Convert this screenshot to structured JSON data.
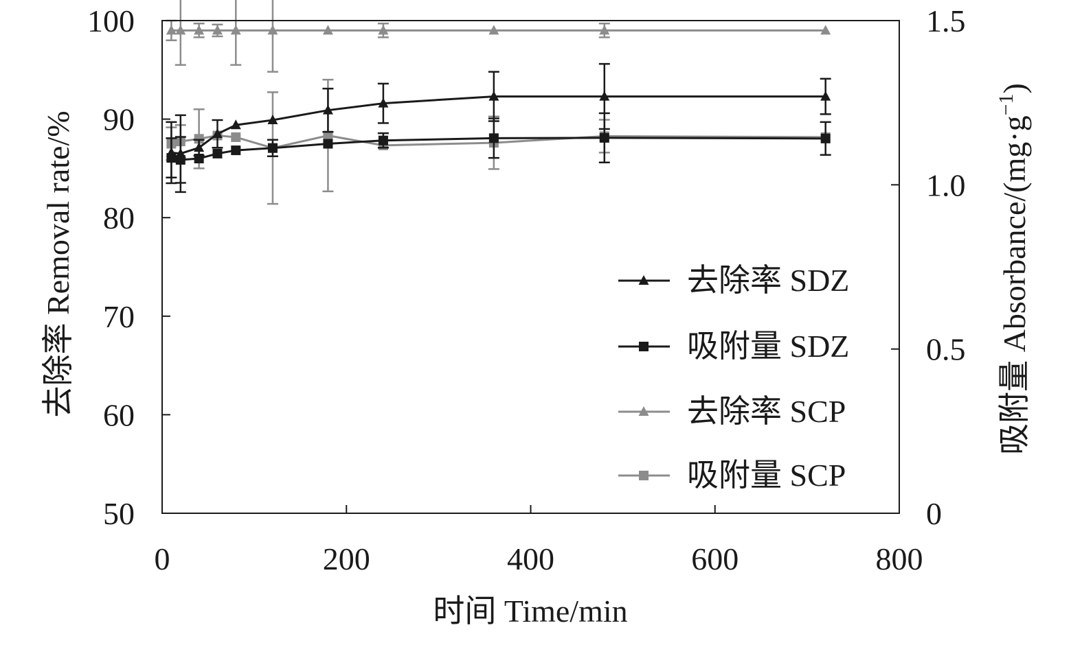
{
  "chart_data": {
    "type": "line",
    "xlabel": "时间 Time/min",
    "ylabel_left": "去除率 Removal rate/%",
    "ylabel_right_main": "吸附量 Absorbance/(mg·g",
    "ylabel_right_sup": "−1",
    "ylabel_right_close": ")",
    "xlim": [
      0,
      800
    ],
    "ylim_left": [
      50,
      100
    ],
    "ylim_right": [
      0,
      1.5
    ],
    "x_ticks": [
      0,
      200,
      400,
      600,
      800
    ],
    "x_tick_labels": [
      "0",
      "200",
      "400",
      "600",
      "800"
    ],
    "y_left_ticks": [
      50,
      60,
      70,
      80,
      90,
      100
    ],
    "y_left_tick_labels": [
      "50",
      "60",
      "70",
      "80",
      "90",
      "100"
    ],
    "y_right_ticks": [
      0,
      0.5,
      1.0,
      1.5
    ],
    "y_right_tick_labels": [
      "0",
      "0.5",
      "1.0",
      "1.5"
    ],
    "grid": false,
    "legend_position": "right-middle",
    "series": [
      {
        "name": "去除率 SDZ",
        "axis": "left",
        "marker": "triangle",
        "color": "#1a1a1a",
        "x": [
          10,
          20,
          40,
          60,
          80,
          120,
          180,
          240,
          360,
          480,
          720
        ],
        "y": [
          86.6,
          86.5,
          87.1,
          88.5,
          89.4,
          89.9,
          90.9,
          91.6,
          92.3,
          92.3,
          92.3
        ],
        "err": [
          3.1,
          3.9,
          0.8,
          1.4,
          0.0,
          0.0,
          2.2,
          2.0,
          2.5,
          3.3,
          1.8
        ]
      },
      {
        "name": "吸附量 SDZ",
        "axis": "right",
        "marker": "square",
        "color": "#1a1a1a",
        "x": [
          10,
          20,
          40,
          60,
          80,
          120,
          180,
          240,
          360,
          480,
          720
        ],
        "y": [
          1.082,
          1.076,
          1.08,
          1.095,
          1.105,
          1.112,
          1.125,
          1.135,
          1.142,
          1.143,
          1.141
        ],
        "err": [
          0.06,
          0.07,
          0.0,
          0.0,
          0.0,
          0.025,
          0.0,
          0.022,
          0.06,
          0.075,
          0.05
        ]
      },
      {
        "name": "去除率 SCP",
        "axis": "left",
        "marker": "triangle",
        "color": "#8c8c8c",
        "x": [
          10,
          20,
          40,
          60,
          80,
          120,
          180,
          240,
          360,
          480,
          720
        ],
        "y": [
          99.0,
          99.0,
          99.0,
          99.0,
          99.0,
          99.0,
          99.0,
          99.0,
          99.0,
          99.0,
          99.0
        ],
        "err": [
          1.0,
          3.5,
          0.7,
          0.6,
          3.5,
          4.2,
          0.0,
          0.7,
          0.0,
          0.7,
          0.0
        ]
      },
      {
        "name": "吸附量 SCP",
        "axis": "right",
        "marker": "square",
        "color": "#8c8c8c",
        "x": [
          10,
          20,
          40,
          60,
          80,
          120,
          180,
          240,
          360,
          480,
          720
        ],
        "y": [
          1.125,
          1.132,
          1.14,
          1.15,
          1.145,
          1.112,
          1.15,
          1.12,
          1.128,
          1.148,
          1.145
        ],
        "err": [
          0.05,
          0.05,
          0.09,
          0.0,
          0.0,
          0.17,
          0.17,
          0.0,
          0.08,
          0.05,
          0.0
        ]
      }
    ]
  }
}
